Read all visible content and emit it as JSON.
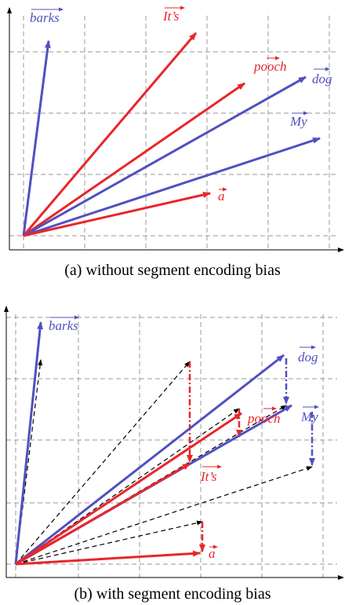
{
  "panel_a": {
    "labels": [
      "barks",
      "It’s",
      "pooch",
      "dog",
      "My",
      "a"
    ],
    "caption": "(a) without segment encoding bias"
  },
  "panel_b": {
    "labels": [
      "barks",
      "dog",
      "pooch",
      "My",
      "It’s",
      "a"
    ],
    "caption": "(b) with segment encoding bias"
  }
}
